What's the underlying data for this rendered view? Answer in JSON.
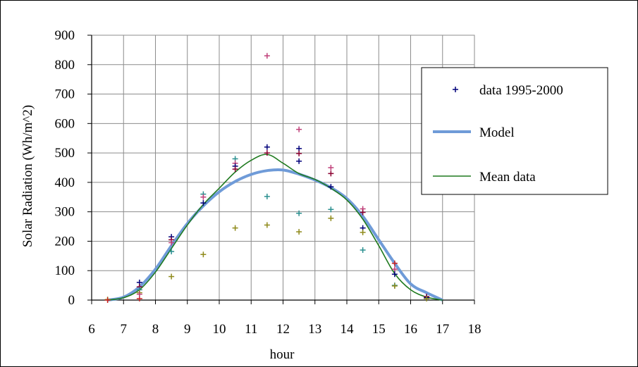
{
  "chart_data": {
    "type": "scatter",
    "xlabel": "hour",
    "ylabel": "Solar Radiation (Wh/m^2)",
    "xlim": [
      6,
      18
    ],
    "ylim": [
      0,
      900
    ],
    "x_ticks": [
      "6",
      "7",
      "8",
      "9",
      "10",
      "11",
      "12",
      "13",
      "14",
      "15",
      "16",
      "17",
      "18"
    ],
    "y_ticks": [
      "0",
      "100",
      "200",
      "300",
      "400",
      "500",
      "600",
      "700",
      "800",
      "900"
    ],
    "grid": true,
    "legend_position": "right",
    "legend": [
      "data 1995-2000",
      "Model",
      "Mean data"
    ],
    "colors": {
      "model": "#6f9bd8",
      "mean": "#1f7a1f",
      "grid": "#8c8c8c",
      "years": [
        "#00007a",
        "#8b0030",
        "#c0407a",
        "#2a8f8f",
        "#8f8a1a",
        "#cc2222"
      ]
    },
    "series": [
      {
        "name": "data 1995-2000",
        "kind": "scatter",
        "points": [
          [
            6.5,
            2,
            4
          ],
          [
            6.5,
            0,
            5
          ],
          [
            7.5,
            60,
            0
          ],
          [
            7.5,
            45,
            1
          ],
          [
            7.5,
            35,
            3
          ],
          [
            7.5,
            25,
            4
          ],
          [
            7.5,
            5,
            5
          ],
          [
            7.5,
            20,
            2
          ],
          [
            8.5,
            215,
            0
          ],
          [
            8.5,
            205,
            1
          ],
          [
            8.5,
            195,
            2
          ],
          [
            8.5,
            165,
            3
          ],
          [
            8.5,
            80,
            4
          ],
          [
            9.5,
            360,
            3
          ],
          [
            9.5,
            350,
            2
          ],
          [
            9.5,
            330,
            0
          ],
          [
            9.5,
            155,
            4
          ],
          [
            10.5,
            480,
            3
          ],
          [
            10.5,
            465,
            2
          ],
          [
            10.5,
            455,
            0
          ],
          [
            10.5,
            445,
            1
          ],
          [
            10.5,
            245,
            4
          ],
          [
            11.5,
            830,
            2
          ],
          [
            11.5,
            520,
            0
          ],
          [
            11.5,
            500,
            1
          ],
          [
            11.5,
            352,
            3
          ],
          [
            11.5,
            255,
            4
          ],
          [
            12.5,
            580,
            2
          ],
          [
            12.5,
            515,
            0
          ],
          [
            12.5,
            498,
            1
          ],
          [
            12.5,
            472,
            0
          ],
          [
            12.5,
            295,
            3
          ],
          [
            12.5,
            232,
            4
          ],
          [
            13.5,
            450,
            2
          ],
          [
            13.5,
            430,
            1
          ],
          [
            13.5,
            385,
            0
          ],
          [
            13.5,
            308,
            3
          ],
          [
            13.5,
            278,
            4
          ],
          [
            14.5,
            310,
            2
          ],
          [
            14.5,
            298,
            1
          ],
          [
            14.5,
            245,
            0
          ],
          [
            14.5,
            230,
            4
          ],
          [
            14.5,
            170,
            3
          ],
          [
            15.5,
            125,
            5
          ],
          [
            15.5,
            105,
            2
          ],
          [
            15.5,
            88,
            0
          ],
          [
            15.5,
            50,
            3
          ],
          [
            15.5,
            48,
            4
          ],
          [
            16.5,
            12,
            1
          ],
          [
            16.5,
            8,
            0
          ],
          [
            16.5,
            5,
            4
          ]
        ]
      },
      {
        "name": "Model",
        "kind": "line",
        "x": [
          6.5,
          7,
          7.5,
          8,
          8.5,
          9,
          9.5,
          10,
          10.5,
          11,
          11.5,
          12,
          12.5,
          13,
          13.5,
          14,
          14.5,
          15,
          15.5,
          16,
          16.5,
          17
        ],
        "y": [
          0,
          10,
          45,
          105,
          185,
          260,
          320,
          368,
          403,
          427,
          440,
          442,
          428,
          408,
          382,
          345,
          285,
          205,
          125,
          55,
          25,
          0
        ]
      },
      {
        "name": "Mean data",
        "kind": "line",
        "x": [
          6.5,
          7,
          7.5,
          8,
          8.5,
          9,
          9.5,
          10,
          10.5,
          11,
          11.5,
          12,
          12.5,
          13,
          13.5,
          14,
          14.5,
          15,
          15.5,
          16,
          16.5,
          17
        ],
        "y": [
          0,
          8,
          35,
          95,
          175,
          255,
          325,
          380,
          435,
          475,
          495,
          465,
          430,
          410,
          380,
          340,
          275,
          185,
          90,
          35,
          10,
          0
        ]
      }
    ]
  }
}
